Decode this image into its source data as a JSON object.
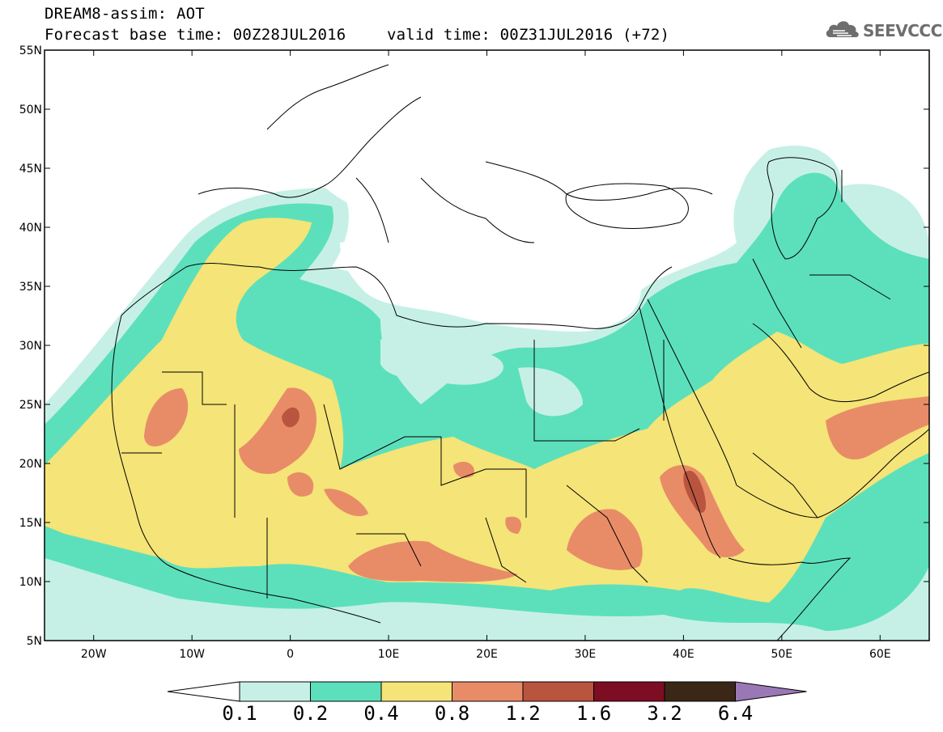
{
  "header": {
    "line1": "DREAM8-assim: AOT",
    "line2": "Forecast base time: 00Z28JUL2016",
    "line3": "valid time: 00Z31JUL2016 (+72)"
  },
  "logo": {
    "text": "SEEVCCC",
    "icon": "cloud-icon"
  },
  "map": {
    "lat_labels": [
      "55N",
      "50N",
      "45N",
      "40N",
      "35N",
      "30N",
      "25N",
      "20N",
      "15N",
      "10N",
      "5N"
    ],
    "lon_labels": [
      "20W",
      "10W",
      "0",
      "10E",
      "20E",
      "30E",
      "40E",
      "50E",
      "60E"
    ],
    "lat_range": [
      5,
      55
    ],
    "lon_range": [
      -25,
      65
    ]
  },
  "colorbar": {
    "labels": [
      "0.1",
      "0.2",
      "0.4",
      "0.8",
      "1.2",
      "1.6",
      "3.2",
      "6.4"
    ],
    "colors": [
      "#c6f0e6",
      "#5ce0bb",
      "#f5e477",
      "#e88c68",
      "#b9543f",
      "#7d0d22",
      "#3a2716",
      "#9a78b5"
    ]
  }
}
